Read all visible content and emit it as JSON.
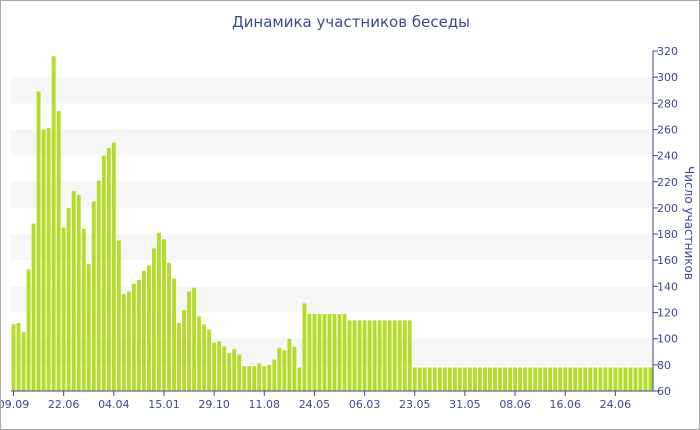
{
  "chart_data": {
    "type": "bar",
    "title": "Динамика участников беседы",
    "ylabel": "Число участников",
    "xlabel": "",
    "ylim": [
      60,
      320
    ],
    "yticks": [
      60,
      80,
      100,
      120,
      140,
      160,
      180,
      200,
      220,
      240,
      260,
      280,
      300,
      320
    ],
    "y_axis_side": "right",
    "grid": "alternating horizontal bands",
    "bar_color": "#b5dc2d",
    "x_tick_labels": [
      "09.09",
      "22.06",
      "04.04",
      "15.01",
      "29.10",
      "11.08",
      "24.05",
      "06.03",
      "23.05",
      "31.05",
      "08.06",
      "16.06",
      "24.06"
    ],
    "x_tick_bar_index": [
      0,
      10,
      20,
      30,
      40,
      50,
      60,
      70,
      80,
      90,
      100,
      110,
      120
    ],
    "values": [
      111,
      112,
      105,
      153,
      188,
      289,
      260,
      261,
      316,
      274,
      185,
      200,
      213,
      210,
      184,
      157,
      205,
      221,
      240,
      246,
      250,
      175,
      134,
      136,
      142,
      145,
      152,
      156,
      169,
      181,
      176,
      158,
      146,
      112,
      122,
      136,
      139,
      117,
      111,
      107,
      97,
      98,
      94,
      89,
      92,
      88,
      79,
      79,
      79,
      81,
      79,
      80,
      84,
      93,
      91,
      100,
      94,
      78,
      127,
      119,
      119,
      119,
      119,
      119,
      119,
      119,
      119,
      114,
      114,
      114,
      114,
      114,
      114,
      114,
      114,
      114,
      114,
      114,
      114,
      114,
      78,
      78,
      78,
      78,
      78,
      78,
      78,
      78,
      78,
      78,
      78,
      78,
      78,
      78,
      78,
      78,
      78,
      78,
      78,
      78,
      78,
      78,
      78,
      78,
      78,
      78,
      78,
      78,
      78,
      78,
      78,
      78,
      78,
      78,
      78,
      78,
      78,
      78,
      78,
      78,
      78,
      78,
      78,
      78,
      78,
      78,
      78,
      78
    ]
  }
}
